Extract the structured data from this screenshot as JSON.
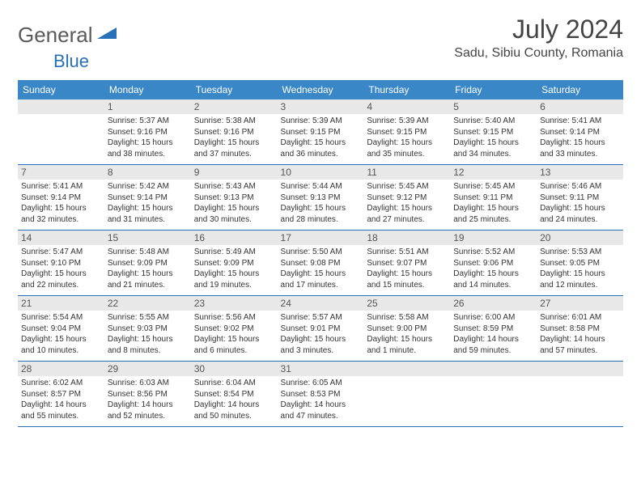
{
  "logo": {
    "text1": "General",
    "text2": "Blue"
  },
  "title": "July 2024",
  "location": "Sadu, Sibiu County, Romania",
  "colors": {
    "header_bg": "#3a87c8",
    "border": "#2671b8",
    "daynum_bg": "#e8e8e8",
    "text": "#333333"
  },
  "weekdays": [
    "Sunday",
    "Monday",
    "Tuesday",
    "Wednesday",
    "Thursday",
    "Friday",
    "Saturday"
  ],
  "weeks": [
    [
      {
        "n": "",
        "sr": "",
        "ss": "",
        "dl": ""
      },
      {
        "n": "1",
        "sr": "Sunrise: 5:37 AM",
        "ss": "Sunset: 9:16 PM",
        "dl": "Daylight: 15 hours and 38 minutes."
      },
      {
        "n": "2",
        "sr": "Sunrise: 5:38 AM",
        "ss": "Sunset: 9:16 PM",
        "dl": "Daylight: 15 hours and 37 minutes."
      },
      {
        "n": "3",
        "sr": "Sunrise: 5:39 AM",
        "ss": "Sunset: 9:15 PM",
        "dl": "Daylight: 15 hours and 36 minutes."
      },
      {
        "n": "4",
        "sr": "Sunrise: 5:39 AM",
        "ss": "Sunset: 9:15 PM",
        "dl": "Daylight: 15 hours and 35 minutes."
      },
      {
        "n": "5",
        "sr": "Sunrise: 5:40 AM",
        "ss": "Sunset: 9:15 PM",
        "dl": "Daylight: 15 hours and 34 minutes."
      },
      {
        "n": "6",
        "sr": "Sunrise: 5:41 AM",
        "ss": "Sunset: 9:14 PM",
        "dl": "Daylight: 15 hours and 33 minutes."
      }
    ],
    [
      {
        "n": "7",
        "sr": "Sunrise: 5:41 AM",
        "ss": "Sunset: 9:14 PM",
        "dl": "Daylight: 15 hours and 32 minutes."
      },
      {
        "n": "8",
        "sr": "Sunrise: 5:42 AM",
        "ss": "Sunset: 9:14 PM",
        "dl": "Daylight: 15 hours and 31 minutes."
      },
      {
        "n": "9",
        "sr": "Sunrise: 5:43 AM",
        "ss": "Sunset: 9:13 PM",
        "dl": "Daylight: 15 hours and 30 minutes."
      },
      {
        "n": "10",
        "sr": "Sunrise: 5:44 AM",
        "ss": "Sunset: 9:13 PM",
        "dl": "Daylight: 15 hours and 28 minutes."
      },
      {
        "n": "11",
        "sr": "Sunrise: 5:45 AM",
        "ss": "Sunset: 9:12 PM",
        "dl": "Daylight: 15 hours and 27 minutes."
      },
      {
        "n": "12",
        "sr": "Sunrise: 5:45 AM",
        "ss": "Sunset: 9:11 PM",
        "dl": "Daylight: 15 hours and 25 minutes."
      },
      {
        "n": "13",
        "sr": "Sunrise: 5:46 AM",
        "ss": "Sunset: 9:11 PM",
        "dl": "Daylight: 15 hours and 24 minutes."
      }
    ],
    [
      {
        "n": "14",
        "sr": "Sunrise: 5:47 AM",
        "ss": "Sunset: 9:10 PM",
        "dl": "Daylight: 15 hours and 22 minutes."
      },
      {
        "n": "15",
        "sr": "Sunrise: 5:48 AM",
        "ss": "Sunset: 9:09 PM",
        "dl": "Daylight: 15 hours and 21 minutes."
      },
      {
        "n": "16",
        "sr": "Sunrise: 5:49 AM",
        "ss": "Sunset: 9:09 PM",
        "dl": "Daylight: 15 hours and 19 minutes."
      },
      {
        "n": "17",
        "sr": "Sunrise: 5:50 AM",
        "ss": "Sunset: 9:08 PM",
        "dl": "Daylight: 15 hours and 17 minutes."
      },
      {
        "n": "18",
        "sr": "Sunrise: 5:51 AM",
        "ss": "Sunset: 9:07 PM",
        "dl": "Daylight: 15 hours and 15 minutes."
      },
      {
        "n": "19",
        "sr": "Sunrise: 5:52 AM",
        "ss": "Sunset: 9:06 PM",
        "dl": "Daylight: 15 hours and 14 minutes."
      },
      {
        "n": "20",
        "sr": "Sunrise: 5:53 AM",
        "ss": "Sunset: 9:05 PM",
        "dl": "Daylight: 15 hours and 12 minutes."
      }
    ],
    [
      {
        "n": "21",
        "sr": "Sunrise: 5:54 AM",
        "ss": "Sunset: 9:04 PM",
        "dl": "Daylight: 15 hours and 10 minutes."
      },
      {
        "n": "22",
        "sr": "Sunrise: 5:55 AM",
        "ss": "Sunset: 9:03 PM",
        "dl": "Daylight: 15 hours and 8 minutes."
      },
      {
        "n": "23",
        "sr": "Sunrise: 5:56 AM",
        "ss": "Sunset: 9:02 PM",
        "dl": "Daylight: 15 hours and 6 minutes."
      },
      {
        "n": "24",
        "sr": "Sunrise: 5:57 AM",
        "ss": "Sunset: 9:01 PM",
        "dl": "Daylight: 15 hours and 3 minutes."
      },
      {
        "n": "25",
        "sr": "Sunrise: 5:58 AM",
        "ss": "Sunset: 9:00 PM",
        "dl": "Daylight: 15 hours and 1 minute."
      },
      {
        "n": "26",
        "sr": "Sunrise: 6:00 AM",
        "ss": "Sunset: 8:59 PM",
        "dl": "Daylight: 14 hours and 59 minutes."
      },
      {
        "n": "27",
        "sr": "Sunrise: 6:01 AM",
        "ss": "Sunset: 8:58 PM",
        "dl": "Daylight: 14 hours and 57 minutes."
      }
    ],
    [
      {
        "n": "28",
        "sr": "Sunrise: 6:02 AM",
        "ss": "Sunset: 8:57 PM",
        "dl": "Daylight: 14 hours and 55 minutes."
      },
      {
        "n": "29",
        "sr": "Sunrise: 6:03 AM",
        "ss": "Sunset: 8:56 PM",
        "dl": "Daylight: 14 hours and 52 minutes."
      },
      {
        "n": "30",
        "sr": "Sunrise: 6:04 AM",
        "ss": "Sunset: 8:54 PM",
        "dl": "Daylight: 14 hours and 50 minutes."
      },
      {
        "n": "31",
        "sr": "Sunrise: 6:05 AM",
        "ss": "Sunset: 8:53 PM",
        "dl": "Daylight: 14 hours and 47 minutes."
      },
      {
        "n": "",
        "sr": "",
        "ss": "",
        "dl": ""
      },
      {
        "n": "",
        "sr": "",
        "ss": "",
        "dl": ""
      },
      {
        "n": "",
        "sr": "",
        "ss": "",
        "dl": ""
      }
    ]
  ]
}
